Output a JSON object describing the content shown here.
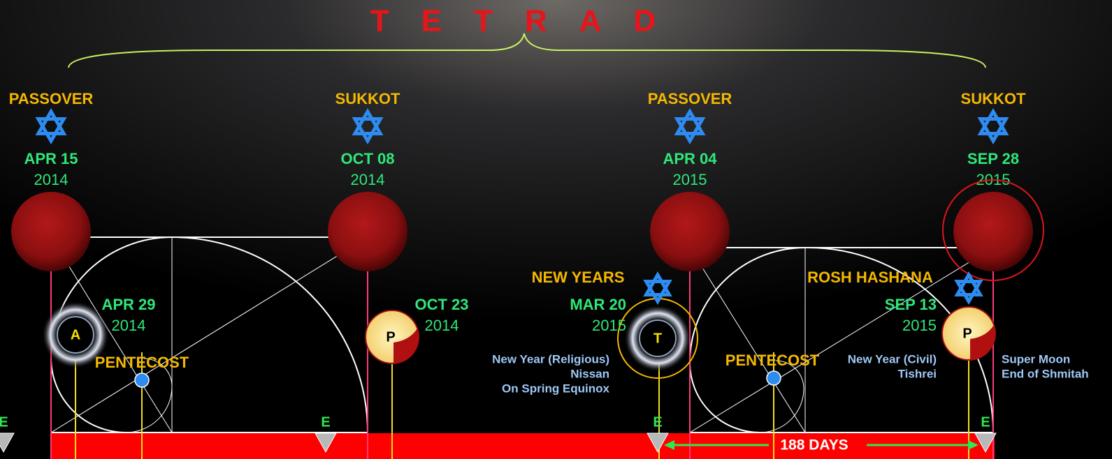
{
  "title": "TETRAD",
  "blood_moons": [
    {
      "feast": "PASSOVER",
      "date": "APR 15",
      "year": "2014"
    },
    {
      "feast": "SUKKOT",
      "date": "OCT 08",
      "year": "2014"
    },
    {
      "feast": "PASSOVER",
      "date": "APR 04",
      "year": "2015"
    },
    {
      "feast": "SUKKOT",
      "date": "SEP 28",
      "year": "2015"
    }
  ],
  "eclipses": [
    {
      "label": "A",
      "date": "APR 29",
      "year": "2014"
    },
    {
      "label": "P",
      "date": "OCT 23",
      "year": "2014"
    },
    {
      "label": "T",
      "feast": "NEW YEARS",
      "date": "MAR 20",
      "year": "2015",
      "notes": [
        "New Year (Religious)",
        "Nissan",
        "On Spring Equinox"
      ]
    },
    {
      "label": "P",
      "feast": "ROSH HASHANA",
      "date": "SEP 13",
      "year": "2015",
      "notes": [
        "New Year (Civil)",
        "Tishrei"
      ]
    }
  ],
  "pentecost": [
    "PENTECOST",
    "PENTECOST"
  ],
  "super_moon_notes": [
    "Super Moon",
    "End of Shmitah"
  ],
  "equinox_markers": [
    "E",
    "E",
    "E",
    "E"
  ],
  "span_label": "188 DAYS"
}
